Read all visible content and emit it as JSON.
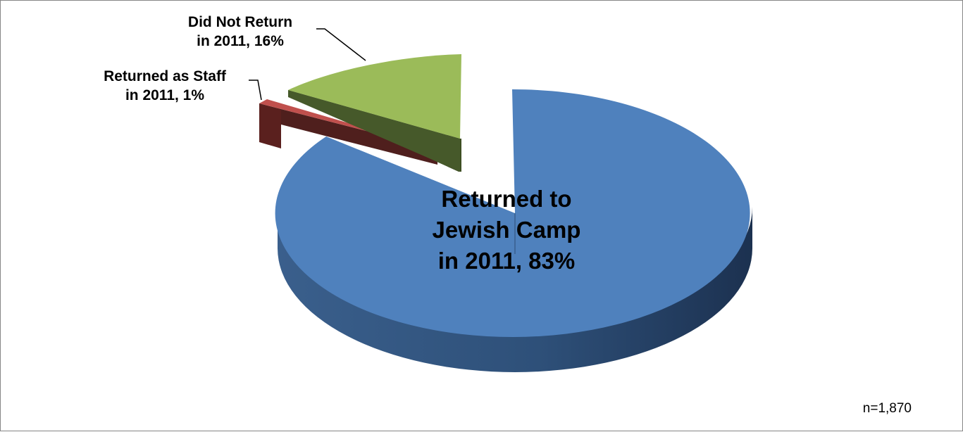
{
  "chart_data": {
    "type": "pie",
    "style": "3d-exploded",
    "slices": [
      {
        "label": "Returned to\nJewish Camp\nin 2011, 83%",
        "value": 83,
        "color": "#4F81BD",
        "side_color": "#2C4D75"
      },
      {
        "label": "Returned as Staff\nin 2011, 1%",
        "value": 1,
        "color": "#C0504D",
        "side_color": "#5A1E1C"
      },
      {
        "label": "Did Not Return\nin 2011, 16%",
        "value": 16,
        "color": "#9BBB59",
        "side_color": "#3D4E22"
      }
    ],
    "note": "n=1,870"
  }
}
